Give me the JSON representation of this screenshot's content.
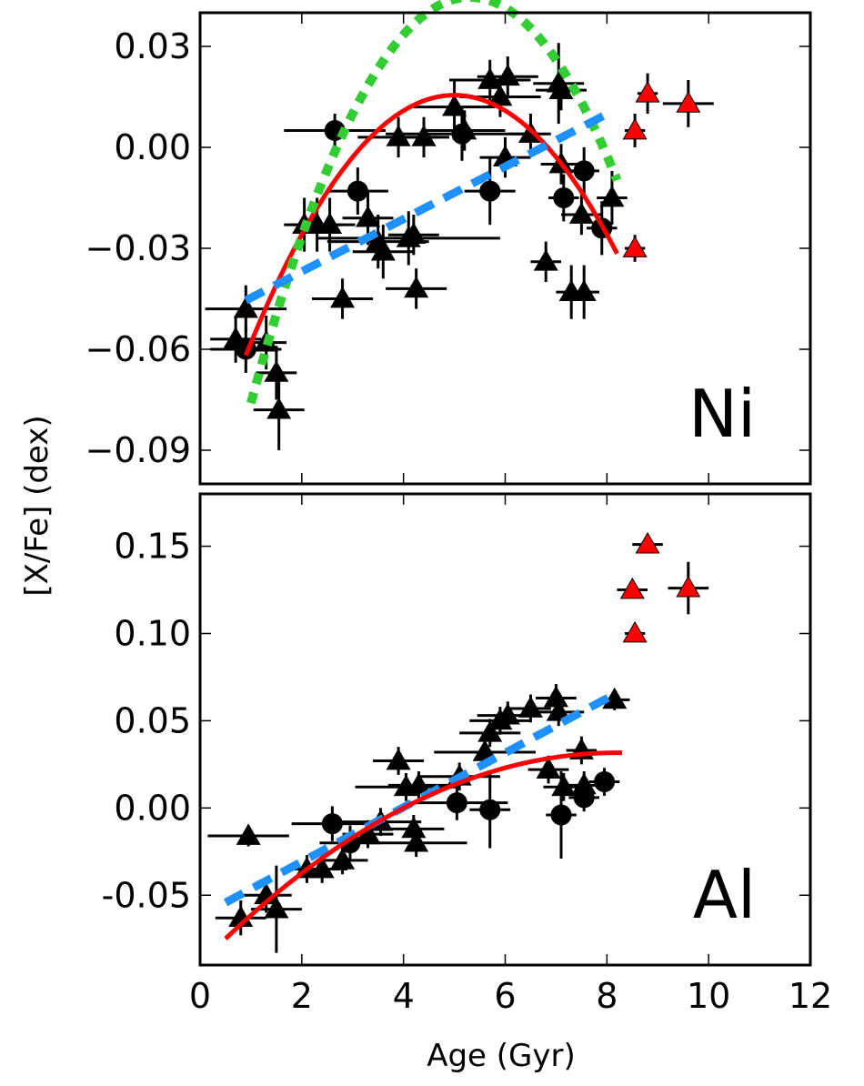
{
  "figure": {
    "ylabel": "[X/Fe] (dex)",
    "xlabel": "Age (Gyr)"
  },
  "chart_data": [
    {
      "type": "scatter",
      "panel_label": "Ni",
      "xlim": [
        0,
        12
      ],
      "ylim": [
        -0.1,
        0.04
      ],
      "yticks": [
        0.03,
        0.0,
        -0.03,
        -0.06,
        -0.09
      ],
      "ytick_labels": [
        "0.03",
        "0.00",
        "−0.03",
        "−0.06",
        "−0.09"
      ],
      "xticks": [
        0,
        2,
        4,
        6,
        8,
        10,
        12
      ],
      "series": [
        {
          "name": "triangles",
          "marker": "triangle",
          "color": "#000000",
          "points": [
            {
              "x": 0.7,
              "y": -0.057,
              "xerr": 0.5,
              "yerr": 0.007
            },
            {
              "x": 0.9,
              "y": -0.048,
              "xerr": 0.8,
              "yerr": 0.007
            },
            {
              "x": 1.3,
              "y": -0.058,
              "xerr": 0.4,
              "yerr": 0.008
            },
            {
              "x": 1.5,
              "y": -0.067,
              "xerr": 0.4,
              "yerr": 0.008
            },
            {
              "x": 1.55,
              "y": -0.078,
              "xerr": 0.5,
              "yerr": 0.012
            },
            {
              "x": 2.05,
              "y": -0.023,
              "xerr": 0.4,
              "yerr": 0.008
            },
            {
              "x": 2.3,
              "y": -0.023,
              "xerr": 0.5,
              "yerr": 0.008
            },
            {
              "x": 2.55,
              "y": -0.023,
              "xerr": 0.5,
              "yerr": 0.008
            },
            {
              "x": 2.8,
              "y": -0.045,
              "xerr": 0.6,
              "yerr": 0.006
            },
            {
              "x": 3.3,
              "y": -0.021,
              "xerr": 0.5,
              "yerr": 0.008
            },
            {
              "x": 3.5,
              "y": -0.028,
              "xerr": 1.0,
              "yerr": 0.008
            },
            {
              "x": 3.6,
              "y": -0.031,
              "xerr": 0.6,
              "yerr": 0.008
            },
            {
              "x": 3.9,
              "y": 0.003,
              "xerr": 0.8,
              "yerr": 0.006
            },
            {
              "x": 4.1,
              "y": -0.027,
              "xerr": 1.8,
              "yerr": 0.008
            },
            {
              "x": 4.2,
              "y": -0.026,
              "xerr": 0.5,
              "yerr": 0.006
            },
            {
              "x": 4.25,
              "y": -0.042,
              "xerr": 0.6,
              "yerr": 0.006
            },
            {
              "x": 4.4,
              "y": 0.003,
              "xerr": 0.5,
              "yerr": 0.006
            },
            {
              "x": 5.0,
              "y": 0.012,
              "xerr": 0.8,
              "yerr": 0.008
            },
            {
              "x": 5.2,
              "y": 0.005,
              "xerr": 0.8,
              "yerr": 0.006
            },
            {
              "x": 5.7,
              "y": 0.02,
              "xerr": 0.8,
              "yerr": 0.006
            },
            {
              "x": 5.9,
              "y": 0.015,
              "xerr": 0.8,
              "yerr": 0.006
            },
            {
              "x": 6.05,
              "y": 0.021,
              "xerr": 0.6,
              "yerr": 0.006
            },
            {
              "x": 6.0,
              "y": -0.003,
              "xerr": 0.5,
              "yerr": 0.006
            },
            {
              "x": 6.5,
              "y": 0.004,
              "xerr": 0.4,
              "yerr": 0.006
            },
            {
              "x": 6.8,
              "y": -0.034,
              "xerr": 0.3,
              "yerr": 0.006
            },
            {
              "x": 7.05,
              "y": 0.019,
              "xerr": 0.5,
              "yerr": 0.012
            },
            {
              "x": 7.1,
              "y": 0.017,
              "xerr": 0.5,
              "yerr": 0.006
            },
            {
              "x": 7.1,
              "y": -0.005,
              "xerr": 0.4,
              "yerr": 0.006
            },
            {
              "x": 7.3,
              "y": -0.043,
              "xerr": 0.3,
              "yerr": 0.008
            },
            {
              "x": 7.55,
              "y": -0.043,
              "xerr": 0.3,
              "yerr": 0.008
            },
            {
              "x": 7.5,
              "y": -0.02,
              "xerr": 0.4,
              "yerr": 0.006
            },
            {
              "x": 8.1,
              "y": -0.015,
              "xerr": 0.3,
              "yerr": 0.008
            }
          ]
        },
        {
          "name": "circles",
          "marker": "circle",
          "color": "#000000",
          "points": [
            {
              "x": 0.9,
              "y": -0.06,
              "xerr": 0.7,
              "yerr": 0.007
            },
            {
              "x": 2.65,
              "y": 0.005,
              "xerr": 1.0,
              "yerr": 0.005
            },
            {
              "x": 3.1,
              "y": -0.013,
              "xerr": 0.6,
              "yerr": 0.007
            },
            {
              "x": 5.15,
              "y": 0.004,
              "xerr": 1.5,
              "yerr": 0.008
            },
            {
              "x": 5.7,
              "y": -0.013,
              "xerr": 0.5,
              "yerr": 0.01
            },
            {
              "x": 7.15,
              "y": -0.015,
              "xerr": 0.3,
              "yerr": 0.007
            },
            {
              "x": 7.55,
              "y": -0.007,
              "xerr": 0.3,
              "yerr": 0.007
            },
            {
              "x": 7.9,
              "y": -0.024,
              "xerr": 0.3,
              "yerr": 0.008
            }
          ]
        },
        {
          "name": "red triangles",
          "marker": "triangle",
          "color": "#ff0000",
          "points": [
            {
              "x": 8.55,
              "y": 0.005,
              "xerr": 0.2,
              "yerr": 0.005
            },
            {
              "x": 8.55,
              "y": -0.03,
              "xerr": 0.2,
              "yerr": 0.004
            },
            {
              "x": 8.8,
              "y": 0.016,
              "xerr": 0.2,
              "yerr": 0.006
            },
            {
              "x": 9.6,
              "y": 0.013,
              "xerr": 0.5,
              "yerr": 0.007
            }
          ]
        }
      ],
      "fits": [
        {
          "name": "red-fit",
          "color": "#ff0000",
          "style": "solid",
          "coef": [
            -0.0046,
            0.046,
            -0.0995
          ],
          "xrange": [
            0.9,
            8.2
          ]
        },
        {
          "name": "green-fit",
          "color": "#33cc33",
          "style": "dotted",
          "coef": [
            -0.0065,
            0.069,
            -0.1385
          ],
          "xrange": [
            1.0,
            8.2
          ]
        },
        {
          "name": "blue-fit",
          "color": "#1e90ff",
          "style": "dashed",
          "coef": [
            0,
            0.0078,
            -0.0525
          ],
          "xrange": [
            0.9,
            8.0
          ]
        }
      ]
    },
    {
      "type": "scatter",
      "panel_label": "Al",
      "xlim": [
        0,
        12
      ],
      "ylim": [
        -0.09,
        0.18
      ],
      "yticks": [
        0.15,
        0.1,
        0.05,
        0.0,
        -0.05
      ],
      "ytick_labels": [
        "0.15",
        "0.10",
        "0.05",
        "0.00",
        "-0.05"
      ],
      "xticks": [
        0,
        2,
        4,
        6,
        8,
        10,
        12
      ],
      "xtick_labels": [
        "0",
        "2",
        "4",
        "6",
        "8",
        "10",
        "12"
      ],
      "series": [
        {
          "name": "triangles",
          "marker": "triangle",
          "color": "#000000",
          "points": [
            {
              "x": 0.8,
              "y": -0.063,
              "xerr": 0.5,
              "yerr": 0.01
            },
            {
              "x": 0.95,
              "y": -0.016,
              "xerr": 0.8,
              "yerr": 0.006
            },
            {
              "x": 1.3,
              "y": -0.05,
              "xerr": 0.5,
              "yerr": 0.01
            },
            {
              "x": 1.5,
              "y": -0.058,
              "xerr": 0.5,
              "yerr": 0.025
            },
            {
              "x": 2.1,
              "y": -0.035,
              "xerr": 0.4,
              "yerr": 0.008
            },
            {
              "x": 2.4,
              "y": -0.035,
              "xerr": 0.5,
              "yerr": 0.008
            },
            {
              "x": 2.8,
              "y": -0.03,
              "xerr": 0.5,
              "yerr": 0.008
            },
            {
              "x": 3.3,
              "y": -0.015,
              "xerr": 0.5,
              "yerr": 0.008
            },
            {
              "x": 3.55,
              "y": -0.008,
              "xerr": 0.8,
              "yerr": 0.008
            },
            {
              "x": 3.9,
              "y": 0.027,
              "xerr": 0.5,
              "yerr": 0.008
            },
            {
              "x": 4.05,
              "y": 0.012,
              "xerr": 1.0,
              "yerr": 0.008
            },
            {
              "x": 4.2,
              "y": -0.012,
              "xerr": 0.6,
              "yerr": 0.008
            },
            {
              "x": 4.25,
              "y": -0.02,
              "xerr": 1.0,
              "yerr": 0.008
            },
            {
              "x": 4.3,
              "y": 0.013,
              "xerr": 0.6,
              "yerr": 0.008
            },
            {
              "x": 5.1,
              "y": 0.018,
              "xerr": 0.8,
              "yerr": 0.008
            },
            {
              "x": 5.6,
              "y": 0.032,
              "xerr": 1.0,
              "yerr": 0.008
            },
            {
              "x": 5.7,
              "y": 0.043,
              "xerr": 0.6,
              "yerr": 0.008
            },
            {
              "x": 5.9,
              "y": 0.05,
              "xerr": 0.6,
              "yerr": 0.008
            },
            {
              "x": 6.05,
              "y": 0.053,
              "xerr": 0.6,
              "yerr": 0.008
            },
            {
              "x": 6.5,
              "y": 0.057,
              "xerr": 0.4,
              "yerr": 0.008
            },
            {
              "x": 6.85,
              "y": 0.022,
              "xerr": 0.4,
              "yerr": 0.008
            },
            {
              "x": 7.0,
              "y": 0.063,
              "xerr": 0.4,
              "yerr": 0.008
            },
            {
              "x": 7.05,
              "y": 0.055,
              "xerr": 0.5,
              "yerr": 0.008
            },
            {
              "x": 7.15,
              "y": 0.012,
              "xerr": 0.4,
              "yerr": 0.008
            },
            {
              "x": 7.5,
              "y": 0.033,
              "xerr": 0.3,
              "yerr": 0.008
            },
            {
              "x": 7.55,
              "y": 0.013,
              "xerr": 0.3,
              "yerr": 0.008
            },
            {
              "x": 8.15,
              "y": 0.062,
              "xerr": 0.3,
              "yerr": 0.006
            }
          ]
        },
        {
          "name": "circles",
          "marker": "circle",
          "color": "#000000",
          "points": [
            {
              "x": 2.6,
              "y": -0.009,
              "xerr": 0.8,
              "yerr": 0.01
            },
            {
              "x": 2.95,
              "y": -0.02,
              "xerr": 0.6,
              "yerr": 0.01
            },
            {
              "x": 5.05,
              "y": 0.003,
              "xerr": 1.0,
              "yerr": 0.01
            },
            {
              "x": 5.7,
              "y": -0.001,
              "xerr": 0.4,
              "yerr": 0.022
            },
            {
              "x": 7.1,
              "y": -0.004,
              "xerr": 0.3,
              "yerr": 0.025
            },
            {
              "x": 7.55,
              "y": 0.006,
              "xerr": 0.3,
              "yerr": 0.008
            },
            {
              "x": 7.95,
              "y": 0.015,
              "xerr": 0.3,
              "yerr": 0.008
            }
          ]
        },
        {
          "name": "red triangles",
          "marker": "triangle",
          "color": "#ff0000",
          "points": [
            {
              "x": 8.5,
              "y": 0.125,
              "xerr": 0.3,
              "yerr": 0.005
            },
            {
              "x": 8.55,
              "y": 0.1,
              "xerr": 0.2,
              "yerr": 0.005
            },
            {
              "x": 8.8,
              "y": 0.151,
              "xerr": 0.3,
              "yerr": 0.005
            },
            {
              "x": 9.6,
              "y": 0.126,
              "xerr": 0.4,
              "yerr": 0.015
            }
          ]
        }
      ],
      "fits": [
        {
          "name": "blue-fit",
          "color": "#1e90ff",
          "style": "dashed",
          "coef": [
            0,
            0.0156,
            -0.062
          ],
          "xrange": [
            0.5,
            8.1
          ]
        },
        {
          "name": "red-fit",
          "color": "#ff0000",
          "style": "solid",
          "coef": [
            -0.0018,
            0.0295,
            -0.0892
          ],
          "xrange": [
            0.5,
            8.3
          ]
        }
      ]
    }
  ]
}
